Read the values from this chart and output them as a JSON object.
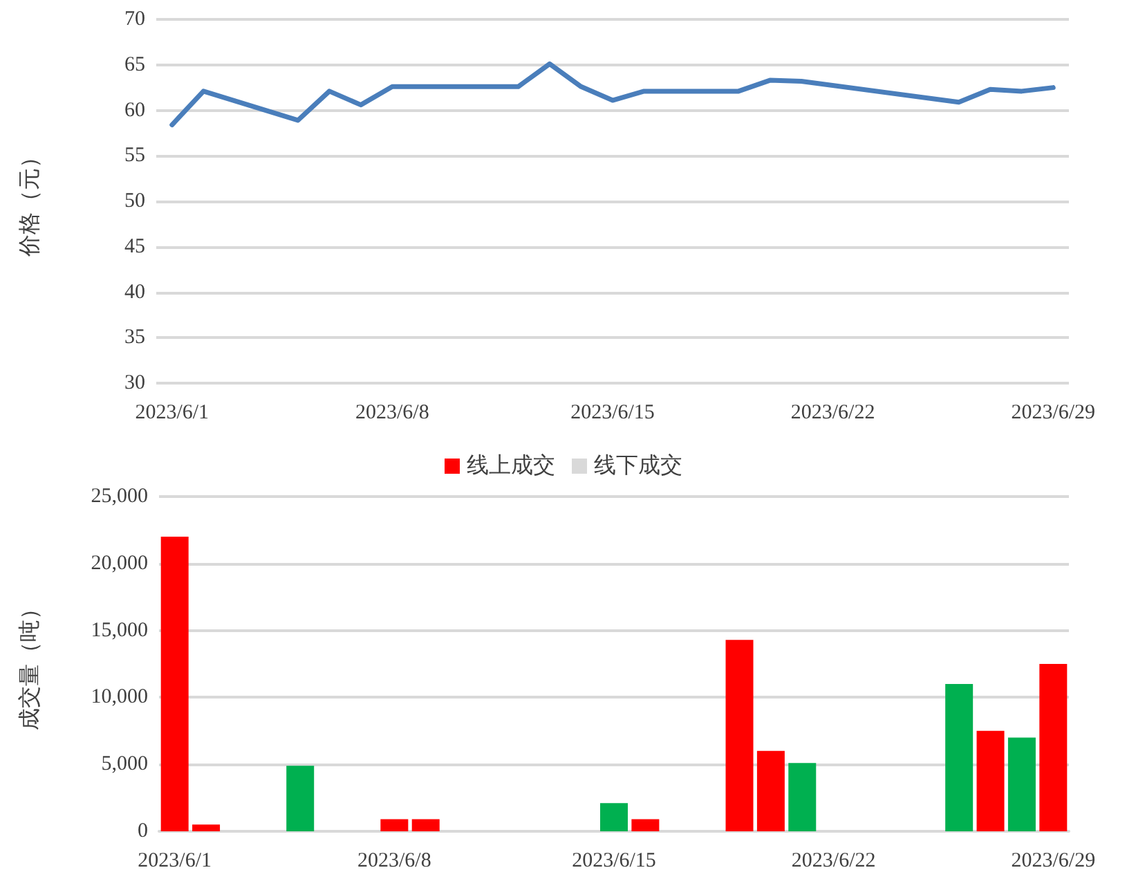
{
  "chart_data": [
    {
      "type": "line",
      "ylabel": "价格（元）",
      "x": [
        "2023-06-01",
        "2023-06-02",
        "2023-06-05",
        "2023-06-06",
        "2023-06-07",
        "2023-06-08",
        "2023-06-09",
        "2023-06-12",
        "2023-06-13",
        "2023-06-14",
        "2023-06-15",
        "2023-06-16",
        "2023-06-19",
        "2023-06-20",
        "2023-06-21",
        "2023-06-26",
        "2023-06-27",
        "2023-06-28",
        "2023-06-29"
      ],
      "series": [
        {
          "color": "#4a7ebb",
          "values": [
            58.4,
            62.1,
            58.9,
            62.1,
            60.6,
            62.6,
            62.6,
            62.6,
            65.1,
            62.6,
            61.1,
            62.1,
            62.1,
            63.3,
            63.2,
            60.9,
            62.3,
            62.1,
            62.5
          ]
        }
      ],
      "xlim": [
        "2023-05-31T12:00",
        "2023-06-29T12:00"
      ],
      "xticks": [
        {
          "value": "2023-06-01",
          "label": "2023/6/1"
        },
        {
          "value": "2023-06-08",
          "label": "2023/6/8"
        },
        {
          "value": "2023-06-15",
          "label": "2023/6/15"
        },
        {
          "value": "2023-06-22",
          "label": "2023/6/22"
        },
        {
          "value": "2023-06-29",
          "label": "2023/6/29"
        }
      ],
      "ylim": [
        30,
        70
      ],
      "yticks": [
        30,
        35,
        40,
        45,
        50,
        55,
        60,
        65,
        70
      ],
      "grid": "y",
      "legend": false,
      "marker": "none",
      "line_style": "solid"
    },
    {
      "type": "bar",
      "ylabel": "成交量（吨）",
      "categories": [
        "2023/6/1",
        null,
        null,
        null,
        null,
        null,
        null,
        "2023/6/8",
        null,
        null,
        null,
        null,
        null,
        null,
        "2023/6/15",
        null,
        null,
        null,
        null,
        null,
        null,
        "2023/6/22",
        null,
        null,
        null,
        null,
        null,
        null,
        "2023/6/29"
      ],
      "series": [
        {
          "name": "线上成交",
          "color": "#ff0000",
          "values": [
            22000,
            500,
            null,
            null,
            4900,
            null,
            null,
            900,
            900,
            null,
            null,
            null,
            null,
            null,
            2100,
            900,
            null,
            null,
            14300,
            6000,
            5100,
            null,
            null,
            null,
            null,
            11000,
            7500,
            7000,
            12500
          ],
          "colors": [
            "#ff0000",
            "#ff0000",
            null,
            null,
            "#00b050",
            null,
            null,
            "#ff0000",
            "#ff0000",
            null,
            null,
            null,
            null,
            null,
            "#00b050",
            "#ff0000",
            null,
            null,
            "#ff0000",
            "#ff0000",
            "#00b050",
            null,
            null,
            null,
            null,
            "#00b050",
            "#ff0000",
            "#00b050",
            "#ff0000"
          ]
        },
        {
          "name": "线下成交",
          "color": "#d9d9d9",
          "values": [
            null,
            null,
            null,
            null,
            null,
            null,
            null,
            null,
            null,
            null,
            null,
            null,
            null,
            null,
            null,
            null,
            null,
            null,
            null,
            null,
            null,
            null,
            null,
            null,
            null,
            null,
            null,
            null,
            null
          ]
        }
      ],
      "ylim": [
        0,
        25000
      ],
      "yticks": [
        0,
        {
          "value": 5000,
          "label": "5,000"
        },
        {
          "value": 10000,
          "label": "10,000"
        },
        {
          "value": 15000,
          "label": "15,000"
        },
        {
          "value": 20000,
          "label": "20,000"
        },
        {
          "value": 25000,
          "label": "25,000"
        }
      ],
      "grid": "y",
      "legend": "top"
    }
  ]
}
